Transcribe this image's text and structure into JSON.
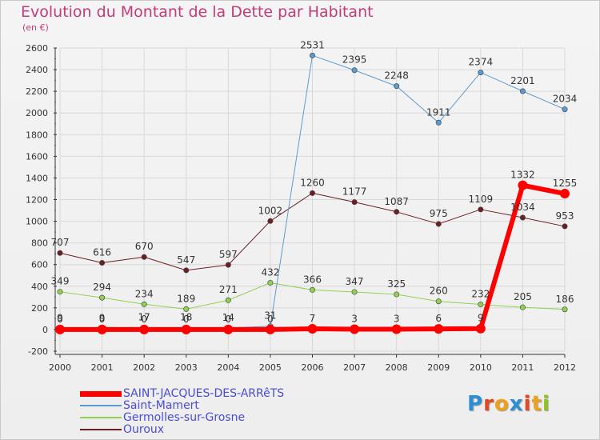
{
  "chart_data": {
    "type": "line",
    "title": "Evolution du Montant de la Dette par Habitant",
    "subtitle": "(en €)",
    "x": [
      "2000",
      "2001",
      "2002",
      "2003",
      "2004",
      "2005",
      "2006",
      "2007",
      "2008",
      "2009",
      "2010",
      "2011",
      "2012"
    ],
    "ylim": [
      -200,
      2600
    ],
    "yticks": [
      -200,
      0,
      200,
      400,
      600,
      800,
      1000,
      1200,
      1400,
      1600,
      1800,
      2000,
      2200,
      2400,
      2600
    ],
    "grid": true,
    "legend_position": "bottom-left",
    "series": [
      {
        "name": "Ouroux",
        "color": "#6b1f24",
        "width": 1,
        "values": [
          707,
          616,
          670,
          547,
          597,
          1002,
          1260,
          1177,
          1087,
          975,
          1109,
          1034,
          953
        ],
        "labels": [
          "707",
          "616",
          "670",
          "547",
          "597",
          "1002",
          "1260",
          "1177",
          "1087",
          "975",
          "1109",
          "1034",
          "953"
        ]
      },
      {
        "name": "Germolles-sur-Grosne",
        "color": "#8fd14f",
        "width": 1,
        "values": [
          349,
          294,
          234,
          189,
          271,
          432,
          366,
          347,
          325,
          260,
          232,
          205,
          186
        ],
        "labels": [
          "349",
          "294",
          "234",
          "189",
          "271",
          "432",
          "366",
          "347",
          "325",
          "260",
          "232",
          "205",
          "186"
        ]
      },
      {
        "name": "Saint-Mamert",
        "color": "#5b9bd0",
        "width": 1,
        "values": [
          9,
          9,
          17,
          18,
          14,
          31,
          2531,
          2395,
          2248,
          1911,
          2374,
          2201,
          2034
        ],
        "labels": [
          "9",
          "9",
          "17",
          "18",
          "14",
          "31",
          "2531",
          "2395",
          "2248",
          "1911",
          "2374",
          "2201",
          "2034"
        ]
      },
      {
        "name": "SAINT-JACQUES-DES-ARRêTS",
        "color": "#ff0000",
        "width": 6,
        "values": [
          0,
          0,
          0,
          0,
          0,
          0,
          7,
          3,
          3,
          6,
          9,
          1332,
          1255
        ],
        "labels": [
          "0",
          "0",
          "0",
          "0",
          "0",
          "0",
          "7",
          "3",
          "3",
          "6",
          "9",
          "1332",
          "1255"
        ]
      }
    ]
  },
  "legend": [
    {
      "label": "SAINT-JACQUES-DES-ARRêTS",
      "color": "#ff0000"
    },
    {
      "label": "Saint-Mamert",
      "color": "#5b9bd0"
    },
    {
      "label": "Germolles-sur-Grosne",
      "color": "#8fd14f"
    },
    {
      "label": "Ouroux",
      "color": "#6b1f24"
    }
  ],
  "logo": {
    "letters": [
      "P",
      "r",
      "o",
      "x",
      "i",
      "t",
      "i"
    ],
    "colors": [
      "#2a8fd6",
      "#e8461e",
      "#f0a11a",
      "#2a8fd6",
      "#e8461e",
      "#f0a11a",
      "#8fc31f"
    ]
  }
}
